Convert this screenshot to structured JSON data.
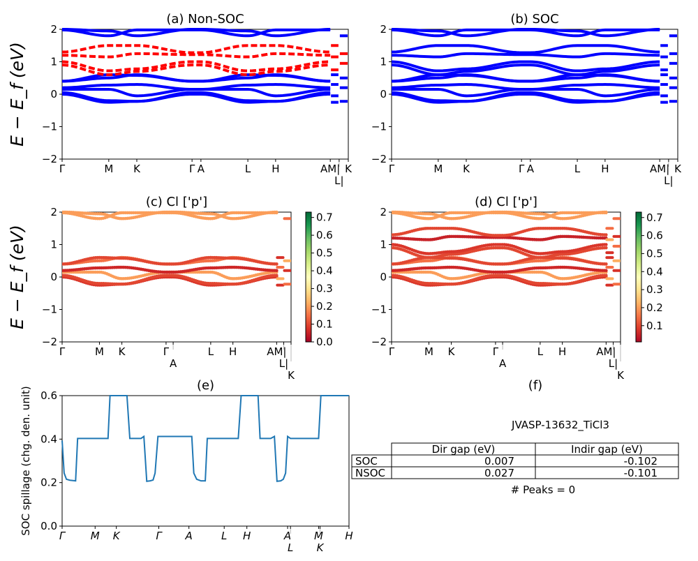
{
  "colors": {
    "spin_up": "#0000ff",
    "spin_down": "#ff0000",
    "spillage": "#1f77b4",
    "colormap": "RdYlGn"
  },
  "kpath_ticks": [
    {
      "label": "Γ",
      "k": 0
    },
    {
      "label": "M",
      "k": 16.3
    },
    {
      "label": "K",
      "k": 26.1
    },
    {
      "label": "Γ",
      "k": 45.4
    },
    {
      "label": "A",
      "k": 48.5
    },
    {
      "label": "L",
      "k": 64.9
    },
    {
      "label": "H",
      "k": 74.6
    },
    {
      "label": "AM|",
      "k": 93.7
    },
    {
      "label": "L|",
      "k": 96.8
    },
    {
      "label": "K",
      "k": 100
    }
  ],
  "band_nodes_k": [
    0,
    16.3,
    26.1,
    45.4,
    48.5,
    64.9,
    74.6,
    93.7
  ],
  "bands_up": [
    [
      0.0,
      -0.25,
      -0.22,
      0.0,
      0.0,
      -0.25,
      -0.22,
      0.0
    ],
    [
      0.05,
      -0.2,
      -0.22,
      0.05,
      0.05,
      -0.2,
      -0.22,
      0.05
    ],
    [
      0.15,
      0.15,
      -0.05,
      0.15,
      0.15,
      0.15,
      -0.05,
      0.15
    ],
    [
      0.2,
      0.28,
      0.3,
      0.15,
      0.15,
      0.28,
      0.3,
      0.2
    ],
    [
      0.4,
      0.5,
      0.6,
      0.4,
      0.4,
      0.5,
      0.6,
      0.4
    ],
    [
      0.4,
      0.6,
      0.58,
      0.4,
      0.4,
      0.6,
      0.58,
      0.4
    ],
    [
      1.98,
      1.8,
      1.98,
      1.98,
      1.98,
      1.8,
      1.98,
      1.98
    ],
    [
      2.0,
      1.95,
      1.8,
      2.0,
      2.0,
      1.95,
      1.8,
      2.0
    ]
  ],
  "bands_down": [
    [
      0.9,
      0.6,
      0.7,
      0.9,
      0.9,
      0.6,
      0.7,
      0.9
    ],
    [
      1.0,
      0.72,
      0.78,
      1.0,
      1.0,
      0.72,
      0.78,
      1.0
    ],
    [
      1.2,
      1.15,
      1.25,
      1.22,
      1.22,
      1.15,
      1.25,
      1.2
    ],
    [
      1.3,
      1.5,
      1.5,
      1.28,
      1.28,
      1.5,
      1.5,
      1.3
    ]
  ],
  "end_flat_up": [
    -0.25,
    -0.22,
    -0.05,
    0.2,
    0.3,
    0.5,
    0.6,
    1.8
  ],
  "end_flat_down": [
    0.75,
    0.95,
    1.15,
    1.25,
    1.5
  ],
  "weights_up": [
    0.08,
    0.1,
    0.2,
    0.06,
    0.15,
    0.1,
    0.2,
    0.2
  ],
  "weights_down": [
    0.1,
    0.08,
    0.05,
    0.1
  ],
  "chart_data": [
    {
      "id": "a",
      "type": "line",
      "title": "(a) Non-SOC",
      "ylabel": "E − E_f (eV)",
      "ylim": [
        -2,
        2
      ],
      "yticks": [
        "−2",
        "−1",
        "0",
        "1",
        "2"
      ],
      "series": [
        {
          "name": "",
          "source": "bands_up",
          "style": "solid"
        },
        {
          "name": "",
          "source": "bands_down",
          "style": "dashed"
        }
      ]
    },
    {
      "id": "b",
      "type": "line",
      "title": "(b) SOC",
      "ylim": [
        -2,
        2
      ],
      "yticks": [
        "−2",
        "−1",
        "0",
        "1",
        "2"
      ]
    },
    {
      "id": "c",
      "type": "scatter",
      "title": "(c)  Cl ['p']",
      "ylabel": "E − E_f (eV)",
      "ylim": [
        -2,
        2
      ],
      "yticks": [
        "−2",
        "−1",
        "0",
        "1",
        "2"
      ],
      "colorbar": {
        "range": [
          0,
          0.73
        ],
        "ticks": [
          "0.0",
          "0.1",
          "0.2",
          "0.3",
          "0.4",
          "0.5",
          "0.6",
          "0.7"
        ]
      }
    },
    {
      "id": "d",
      "type": "scatter",
      "title": "(d) Cl ['p']",
      "ylim": [
        -2,
        2
      ],
      "yticks": [
        "−2",
        "−1",
        "0",
        "1",
        "2"
      ],
      "colorbar": {
        "range": [
          0.01,
          0.73
        ],
        "ticks": [
          "0.1",
          "0.2",
          "0.3",
          "0.4",
          "0.5",
          "0.6",
          "0.7"
        ]
      }
    },
    {
      "id": "e",
      "type": "line",
      "title": "(e)",
      "ylabel": "SOC spillage (chg. den. unit)",
      "ylim": [
        0,
        0.64
      ],
      "yticks": [
        "0.0",
        "0.2",
        "0.4",
        "0.6"
      ],
      "xticks": [
        {
          "label": "Γ",
          "k": 0
        },
        {
          "label": "M",
          "k": 11.5
        },
        {
          "label": "K",
          "k": 18.9
        },
        {
          "label": "Γ",
          "k": 33.7
        },
        {
          "label": "A",
          "k": 44.2
        },
        {
          "label": "L",
          "k": 56.5
        },
        {
          "label": "H",
          "k": 64.4
        },
        {
          "label": "A",
          "k": 78.6
        },
        {
          "label": "L",
          "k": 79.6
        },
        {
          "label": "M",
          "k": 89.4
        },
        {
          "label": "K",
          "k": 89.9
        },
        {
          "label": "H",
          "k": 100
        }
      ],
      "x": [
        0,
        0.7,
        1.5,
        2.7,
        4.7,
        5.4,
        16.0,
        16.7,
        22.6,
        23.6,
        27.5,
        28.5,
        29.5,
        30.7,
        31.7,
        32.4,
        33.4,
        45.2,
        45.9,
        46.9,
        48.4,
        49.9,
        50.6,
        61.4,
        62.4,
        68.3,
        69.0,
        72.7,
        74.0,
        74.9,
        76.2,
        77.1,
        77.9,
        78.6,
        79.6,
        89.4,
        90.2,
        100
      ],
      "y": [
        0.42,
        0.26,
        0.23,
        0.225,
        0.222,
        0.43,
        0.43,
        0.64,
        0.64,
        0.43,
        0.43,
        0.44,
        0.22,
        0.222,
        0.226,
        0.26,
        0.44,
        0.44,
        0.26,
        0.23,
        0.222,
        0.222,
        0.43,
        0.43,
        0.64,
        0.64,
        0.43,
        0.43,
        0.44,
        0.22,
        0.222,
        0.23,
        0.26,
        0.44,
        0.43,
        0.43,
        0.64,
        0.64
      ]
    },
    {
      "id": "f",
      "type": "table",
      "title": "(f)",
      "subtitle": "JVASP-13632_TiCl3",
      "columns": [
        "",
        "Dir gap (eV)",
        "Indir gap (eV)"
      ],
      "rows": [
        [
          "SOC",
          "0.007",
          "-0.102"
        ],
        [
          "NSOC",
          "0.027",
          "-0.101"
        ]
      ],
      "footer": "# Peaks = 0"
    }
  ]
}
